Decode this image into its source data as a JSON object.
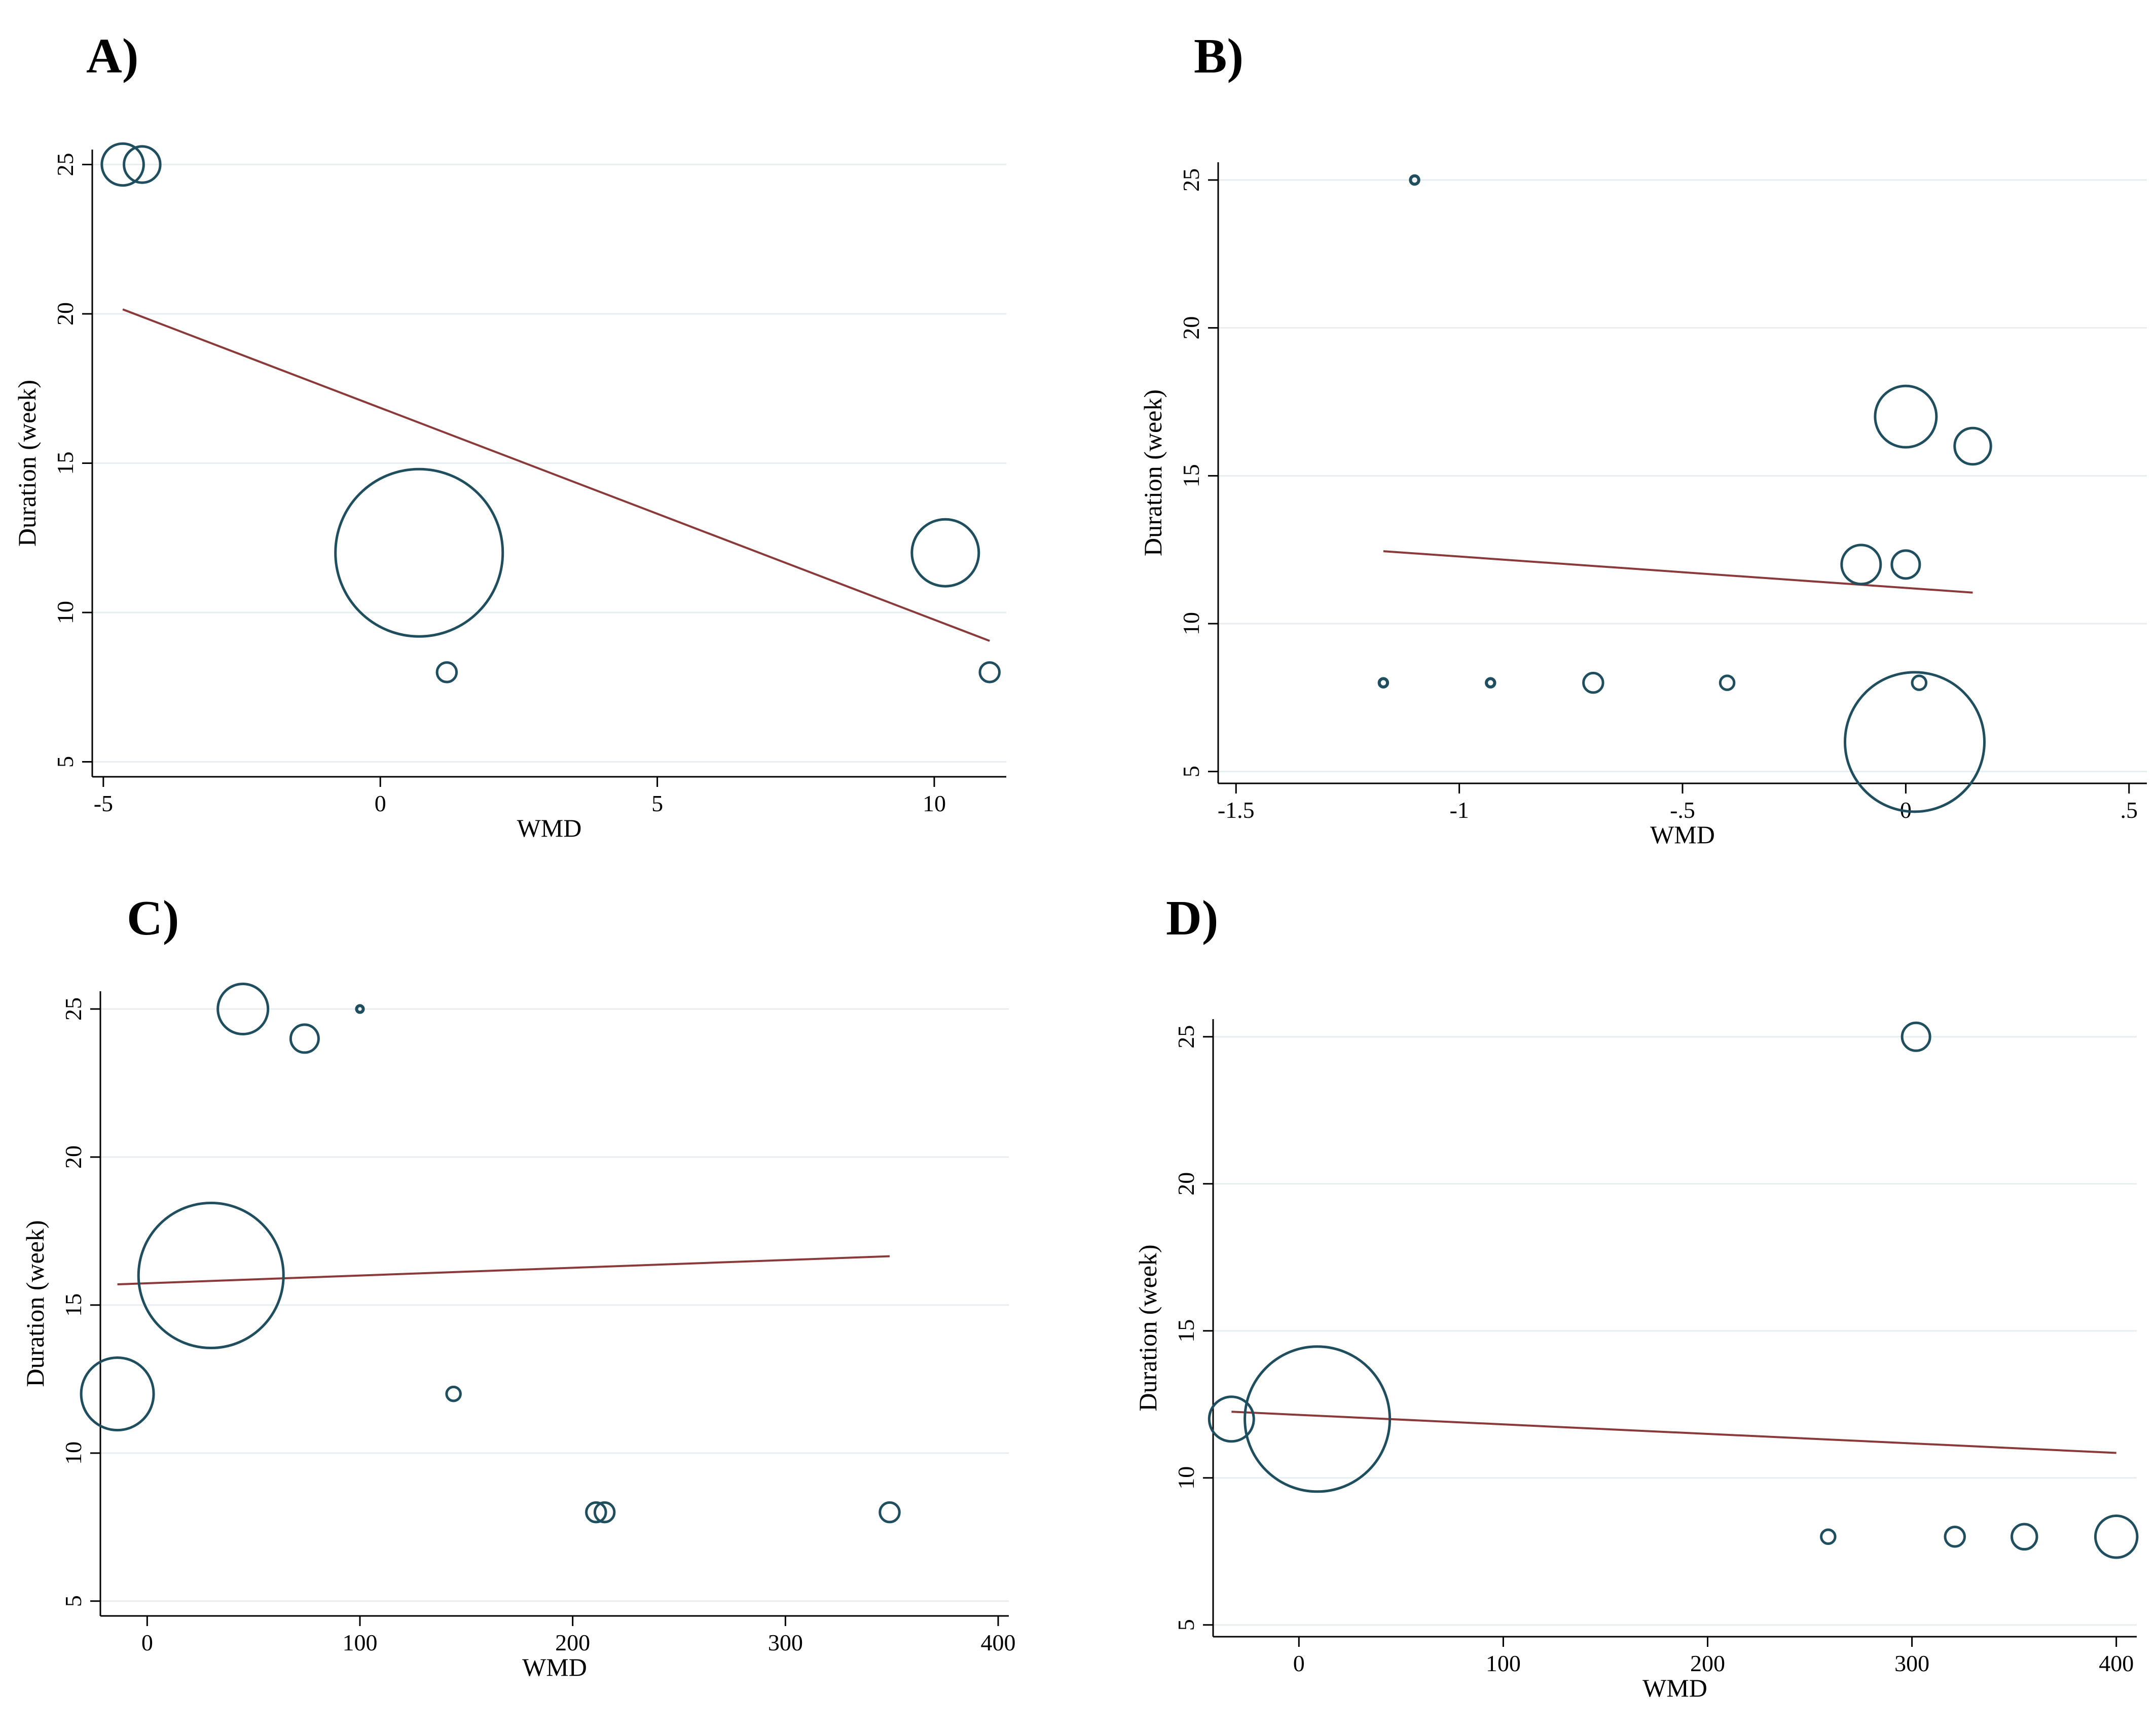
{
  "colors": {
    "marker": "#1f4e5f",
    "fit_line": "#8b3a3a",
    "grid": "#e6eef2",
    "axis": "#000000"
  },
  "chart_data": [
    {
      "id": "A",
      "label": "A)",
      "type": "scatter",
      "xlabel": "WMD",
      "ylabel": "Duration (week)",
      "xlim": [
        -5.2,
        11.3
      ],
      "ylim": [
        4.5,
        25.5
      ],
      "xticks": [
        -5,
        0,
        5,
        10
      ],
      "xtick_labels": [
        "-5",
        "0",
        "5",
        "10"
      ],
      "yticks": [
        5,
        10,
        15,
        20,
        25
      ],
      "ytick_labels": [
        "5",
        "10",
        "15",
        "20",
        "25"
      ],
      "points": [
        {
          "x": -4.65,
          "y": 25,
          "size": 0.75
        },
        {
          "x": -4.3,
          "y": 25,
          "size": 0.65
        },
        {
          "x": 0.7,
          "y": 12,
          "size": 3.0
        },
        {
          "x": 1.2,
          "y": 8,
          "size": 0.35
        },
        {
          "x": 10.2,
          "y": 12,
          "size": 1.2
        },
        {
          "x": 11.0,
          "y": 8,
          "size": 0.35
        }
      ],
      "fit_line": {
        "x": [
          -4.65,
          11.0
        ],
        "y": [
          20.15,
          9.05
        ]
      }
    },
    {
      "id": "B",
      "label": "B)",
      "type": "scatter",
      "xlabel": "WMD",
      "ylabel": "Duration (week)",
      "xlim": [
        -1.54,
        0.54
      ],
      "ylim": [
        4.6,
        25.6
      ],
      "xticks": [
        -1.5,
        -1,
        -0.5,
        0,
        0.5
      ],
      "xtick_labels": [
        "-1.5",
        "-1",
        "-.5",
        "0",
        ".5"
      ],
      "yticks": [
        5,
        10,
        15,
        20,
        25
      ],
      "ytick_labels": [
        "5",
        "10",
        "15",
        "20",
        "25"
      ],
      "points": [
        {
          "x": -1.1,
          "y": 25,
          "size": 0.15
        },
        {
          "x": 0.0,
          "y": 17,
          "size": 1.1
        },
        {
          "x": 0.15,
          "y": 16,
          "size": 0.65
        },
        {
          "x": -0.1,
          "y": 12,
          "size": 0.7
        },
        {
          "x": 0.0,
          "y": 12,
          "size": 0.5
        },
        {
          "x": -1.17,
          "y": 8,
          "size": 0.15
        },
        {
          "x": -0.93,
          "y": 8,
          "size": 0.15
        },
        {
          "x": -0.7,
          "y": 8,
          "size": 0.35
        },
        {
          "x": -0.4,
          "y": 8,
          "size": 0.25
        },
        {
          "x": 0.03,
          "y": 8,
          "size": 0.25
        },
        {
          "x": 0.02,
          "y": 6,
          "size": 2.5
        }
      ],
      "fit_line": {
        "x": [
          -1.17,
          0.15
        ],
        "y": [
          12.45,
          11.05
        ]
      }
    },
    {
      "id": "C",
      "label": "C)",
      "type": "scatter",
      "xlabel": "WMD",
      "ylabel": "Duration (week)",
      "xlim": [
        -22,
        405
      ],
      "ylim": [
        4.5,
        25.6
      ],
      "xticks": [
        0,
        100,
        200,
        300,
        400
      ],
      "xtick_labels": [
        "0",
        "100",
        "200",
        "300",
        "400"
      ],
      "yticks": [
        5,
        10,
        15,
        20,
        25
      ],
      "ytick_labels": [
        "5",
        "10",
        "15",
        "20",
        "25"
      ],
      "points": [
        {
          "x": 45,
          "y": 25,
          "size": 0.9
        },
        {
          "x": 100,
          "y": 25,
          "size": 0.12
        },
        {
          "x": 74,
          "y": 24,
          "size": 0.5
        },
        {
          "x": 30,
          "y": 16,
          "size": 2.6
        },
        {
          "x": -14,
          "y": 12,
          "size": 1.3
        },
        {
          "x": 144,
          "y": 12,
          "size": 0.25
        },
        {
          "x": 211,
          "y": 8,
          "size": 0.35
        },
        {
          "x": 215,
          "y": 8,
          "size": 0.35
        },
        {
          "x": 349,
          "y": 8,
          "size": 0.35
        }
      ],
      "fit_line": {
        "x": [
          -14,
          349
        ],
        "y": [
          15.7,
          16.65
        ]
      }
    },
    {
      "id": "D",
      "label": "D)",
      "type": "scatter",
      "xlabel": "WMD",
      "ylabel": "Duration (week)",
      "xlim": [
        -42,
        410
      ],
      "ylim": [
        4.6,
        25.6
      ],
      "xticks": [
        0,
        100,
        200,
        300,
        400
      ],
      "xtick_labels": [
        "0",
        "100",
        "200",
        "300",
        "400"
      ],
      "yticks": [
        5,
        10,
        15,
        20,
        25
      ],
      "ytick_labels": [
        "5",
        "10",
        "15",
        "20",
        "25"
      ],
      "points": [
        {
          "x": 302,
          "y": 25,
          "size": 0.5
        },
        {
          "x": -33,
          "y": 12,
          "size": 0.8
        },
        {
          "x": 9,
          "y": 12,
          "size": 2.6
        },
        {
          "x": 259,
          "y": 8,
          "size": 0.25
        },
        {
          "x": 321,
          "y": 8,
          "size": 0.35
        },
        {
          "x": 355,
          "y": 8,
          "size": 0.45
        },
        {
          "x": 400,
          "y": 8,
          "size": 0.75
        }
      ],
      "fit_line": {
        "x": [
          -33,
          400
        ],
        "y": [
          12.25,
          10.85
        ]
      }
    }
  ]
}
